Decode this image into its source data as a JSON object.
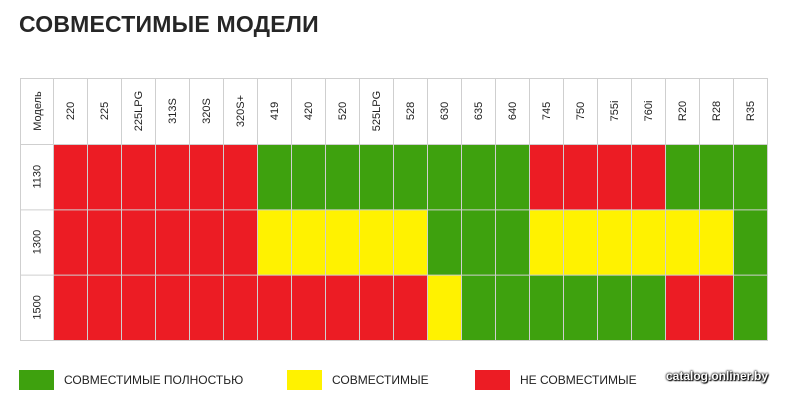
{
  "title": "СОВМЕСТИМЫЕ МОДЕЛИ",
  "chart_data": {
    "type": "heatmap",
    "row_header": "Модель",
    "columns": [
      "220",
      "225",
      "225LPG",
      "313S",
      "320S",
      "320S+",
      "419",
      "420",
      "520",
      "525LPG",
      "528",
      "630",
      "635",
      "640",
      "745",
      "750",
      "755i",
      "760i",
      "R20",
      "R28",
      "R35"
    ],
    "rows": [
      {
        "label": "1130",
        "values": [
          "red",
          "red",
          "red",
          "red",
          "red",
          "red",
          "green",
          "green",
          "green",
          "green",
          "green",
          "green",
          "green",
          "green",
          "red",
          "red",
          "red",
          "red",
          "green",
          "green",
          "green"
        ]
      },
      {
        "label": "1300",
        "values": [
          "red",
          "red",
          "red",
          "red",
          "red",
          "red",
          "yellow",
          "yellow",
          "yellow",
          "yellow",
          "yellow",
          "green",
          "green",
          "green",
          "yellow",
          "yellow",
          "yellow",
          "yellow",
          "yellow",
          "yellow",
          "green"
        ]
      },
      {
        "label": "1500",
        "values": [
          "red",
          "red",
          "red",
          "red",
          "red",
          "red",
          "red",
          "red",
          "red",
          "red",
          "red",
          "yellow",
          "green",
          "green",
          "green",
          "green",
          "green",
          "green",
          "red",
          "red",
          "green"
        ]
      }
    ],
    "legend": [
      {
        "key": "green",
        "label": "СОВМЕСТИМЫЕ ПОЛНОСТЬЮ",
        "color": "#3ea10e"
      },
      {
        "key": "yellow",
        "label": "СОВМЕСТИМЫЕ",
        "color": "#fff200"
      },
      {
        "key": "red",
        "label": "НЕ СОВМЕСТИМЫЕ",
        "color": "#ec1c24"
      }
    ]
  },
  "watermark": "catalog.onliner.by"
}
